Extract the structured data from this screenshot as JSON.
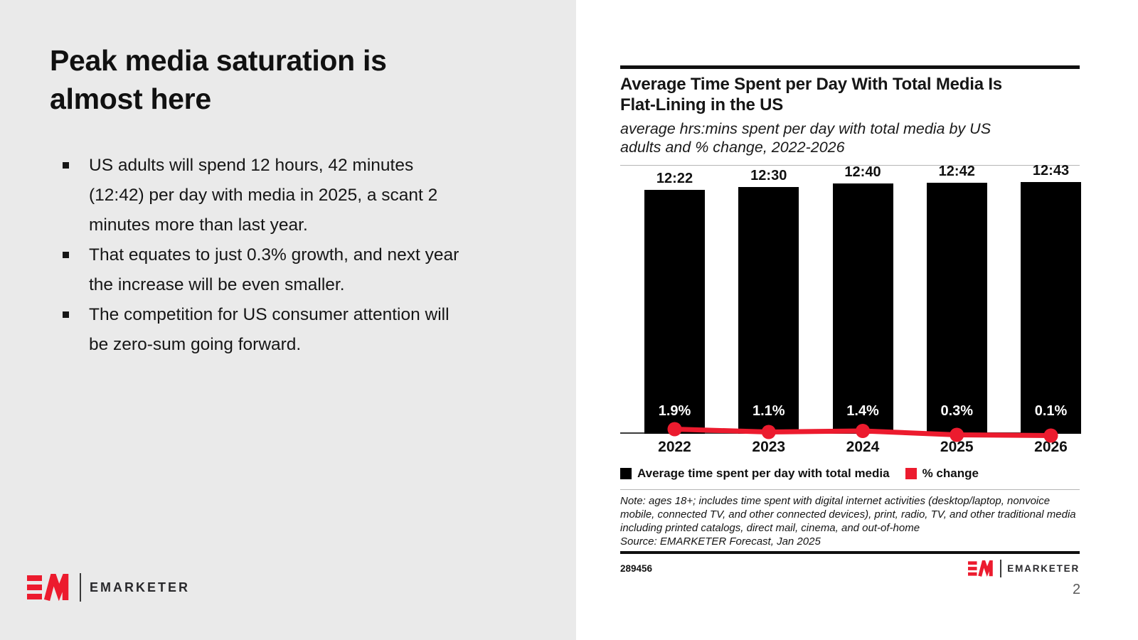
{
  "colors": {
    "accent_red": "#EC1B2E",
    "bar_black": "#000000",
    "panel_gray": "#EAEAEA",
    "page_number_gray": "#595959"
  },
  "left_panel": {
    "title": "Peak media saturation is almost here",
    "title_lines": [
      "Peak media saturation is",
      "almost here"
    ],
    "bullets": [
      "US adults will spend 12 hours, 42 minutes (12:42) per day with media in 2025, a scant 2 minutes more than last year.",
      "That equates to just 0.3% growth, and next year the increase will be even smaller.",
      "The competition for US consumer attention will be zero-sum going forward."
    ],
    "logo_text": "EMARKETER"
  },
  "chart_panel": {
    "title": "Average Time Spent per Day With Total Media Is Flat-Lining in the US",
    "title_lines": [
      "Average Time Spent per Day With Total Media Is",
      "Flat-Lining in the US"
    ],
    "subtitle": "average hrs:mins spent per day with total media by US adults and % change, 2022-2026",
    "subtitle_lines": [
      "average hrs:mins spent per day with total media by US",
      "adults and % change, 2022-2026"
    ],
    "note": "Note: ages 18+; includes time spent with digital internet activities (desktop/laptop, nonvoice mobile, connected TV, and other connected devices), print, radio, TV, and other traditional media including printed catalogs, direct mail, cinema, and out-of-home",
    "source": "Source: EMARKETER Forecast, Jan 2025",
    "chart_id": "289456",
    "logo_text": "EMARKETER"
  },
  "page_number": "2",
  "chart_data": {
    "type": "bar",
    "title": "Average Time Spent per Day With Total Media Is Flat-Lining in the US",
    "subtitle": "average hrs:mins spent per day with total media by US adults and % change, 2022-2026",
    "categories": [
      "2022",
      "2023",
      "2024",
      "2025",
      "2026"
    ],
    "series": [
      {
        "name": "Average time spent per day with total media",
        "render": "bar",
        "unit": "hrs:mins",
        "labels": [
          "12:22",
          "12:30",
          "12:40",
          "12:42",
          "12:43"
        ],
        "values_minutes": [
          742,
          750,
          760,
          762,
          763
        ],
        "color": "#000000"
      },
      {
        "name": "% change",
        "render": "line",
        "unit": "%",
        "labels": [
          "1.9%",
          "1.1%",
          "1.4%",
          "0.3%",
          "0.1%"
        ],
        "values": [
          1.9,
          1.1,
          1.4,
          0.3,
          0.1
        ],
        "color": "#EC1B2E"
      }
    ],
    "legend_position": "bottom",
    "grid": false
  }
}
